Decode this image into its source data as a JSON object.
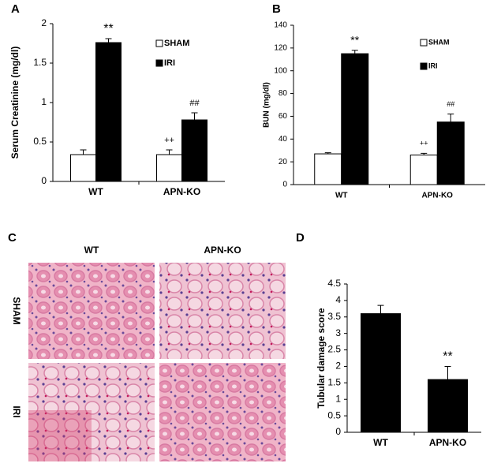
{
  "chart_data": [
    {
      "type": "bar",
      "panel_label": "A",
      "y_label": "Serum Creatinine (mg/dl)",
      "categories": [
        "WT",
        "APN-KO"
      ],
      "ylim": [
        0,
        2
      ],
      "yticks": [
        0,
        0.5,
        1,
        1.5,
        2
      ],
      "legend": "top-right",
      "series": [
        {
          "name": "SHAM",
          "color": "#ffffff",
          "values": [
            0.34,
            0.34
          ],
          "errors": [
            0.06,
            0.06
          ],
          "annotations": [
            null,
            "++"
          ]
        },
        {
          "name": "IRI",
          "color": "#000000",
          "values": [
            1.76,
            0.78
          ],
          "errors": [
            0.05,
            0.09
          ],
          "annotations": [
            "**",
            "##"
          ]
        }
      ]
    },
    {
      "type": "bar",
      "panel_label": "B",
      "y_label": "BUN (mg/dl)",
      "categories": [
        "WT",
        "APN-KO"
      ],
      "ylim": [
        0,
        140
      ],
      "yticks": [
        0,
        20,
        40,
        60,
        80,
        100,
        120,
        140
      ],
      "legend": "top-right",
      "series": [
        {
          "name": "SHAM",
          "color": "#ffffff",
          "values": [
            27,
            26
          ],
          "errors": [
            1,
            1.5
          ],
          "annotations": [
            null,
            "++"
          ]
        },
        {
          "name": "IRI",
          "color": "#000000",
          "values": [
            115,
            55
          ],
          "errors": [
            3,
            7
          ],
          "annotations": [
            "**",
            "##"
          ]
        }
      ]
    },
    {
      "type": "bar",
      "panel_label": "D",
      "y_label": "Tubular damage score",
      "categories": [
        "WT",
        "APN-KO"
      ],
      "ylim": [
        0,
        4.5
      ],
      "yticks": [
        0,
        0.5,
        1,
        1.5,
        2,
        2.5,
        3,
        3.5,
        4,
        4.5
      ],
      "series": [
        {
          "color": "#000000",
          "values": [
            3.6,
            1.6
          ],
          "errors": [
            0.25,
            0.4
          ],
          "annotations": [
            null,
            "**"
          ]
        }
      ]
    }
  ],
  "panel_c": {
    "panel_label": "C",
    "columns": [
      "WT",
      "APN-KO"
    ],
    "rows": [
      "SHAM",
      "IRI"
    ]
  }
}
